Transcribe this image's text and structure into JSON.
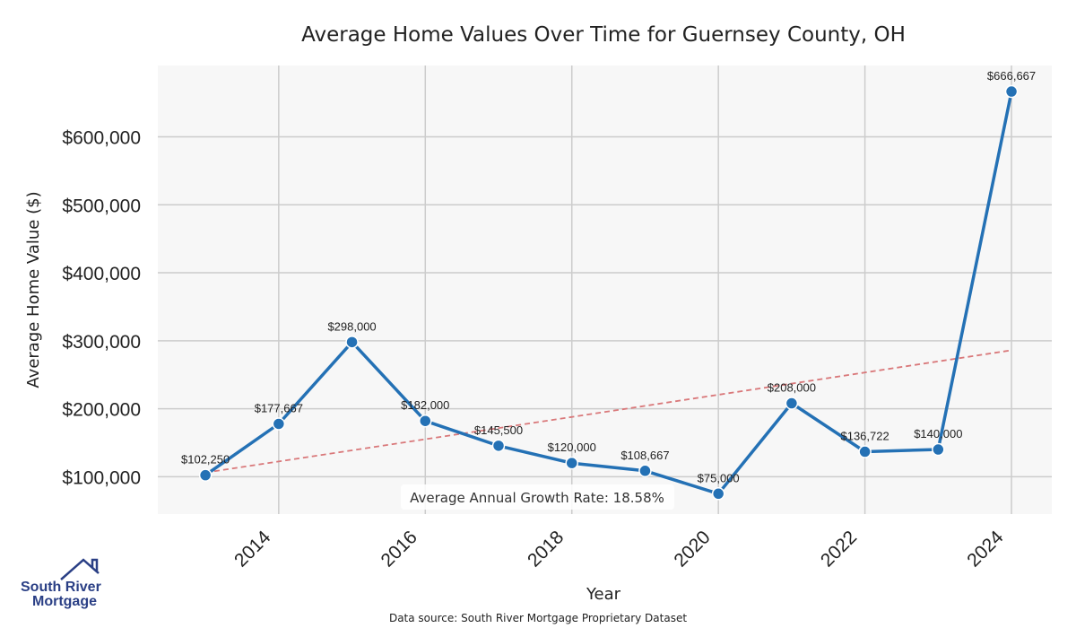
{
  "chart_data": {
    "type": "line",
    "title": "Average Home Values Over Time for Guernsey County, OH",
    "xlabel": "Year",
    "ylabel": "Average Home Value ($)",
    "x": [
      2013,
      2014,
      2015,
      2016,
      2017,
      2018,
      2019,
      2020,
      2021,
      2022,
      2023,
      2024
    ],
    "series": [
      {
        "name": "Average Home Value",
        "color": "#2471b5",
        "values": [
          102250,
          177667,
          298000,
          182000,
          145500,
          120000,
          108667,
          75000,
          208000,
          136722,
          140000,
          666667
        ],
        "labels": [
          "$102,250",
          "$177,667",
          "$298,000",
          "$182,000",
          "$145,500",
          "$120,000",
          "$108,667",
          "$75,000",
          "$208,000",
          "$136,722",
          "$140,000",
          "$666,667"
        ]
      }
    ],
    "trendline": {
      "color": "#d9787a",
      "start": [
        2013,
        106000
      ],
      "end": [
        2024,
        286000
      ]
    },
    "xticks": [
      2014,
      2016,
      2018,
      2020,
      2022,
      2024
    ],
    "xtick_labels": [
      "2014",
      "2016",
      "2018",
      "2020",
      "2022",
      "2024"
    ],
    "yticks": [
      100000,
      200000,
      300000,
      400000,
      500000,
      600000
    ],
    "ytick_labels": [
      "$100,000",
      "$200,000",
      "$300,000",
      "$400,000",
      "$500,000",
      "$600,000"
    ],
    "xlim": [
      2012.35,
      2024.55
    ],
    "ylim": [
      45000,
      705000
    ],
    "grid": true,
    "annotation": "Average Annual Growth Rate: 18.58%"
  },
  "footer": {
    "source": "Data source: South River Mortgage Proprietary Dataset"
  },
  "logo": {
    "line1": "South River",
    "line2": "Mortgage",
    "icon": "house-roof-icon"
  }
}
